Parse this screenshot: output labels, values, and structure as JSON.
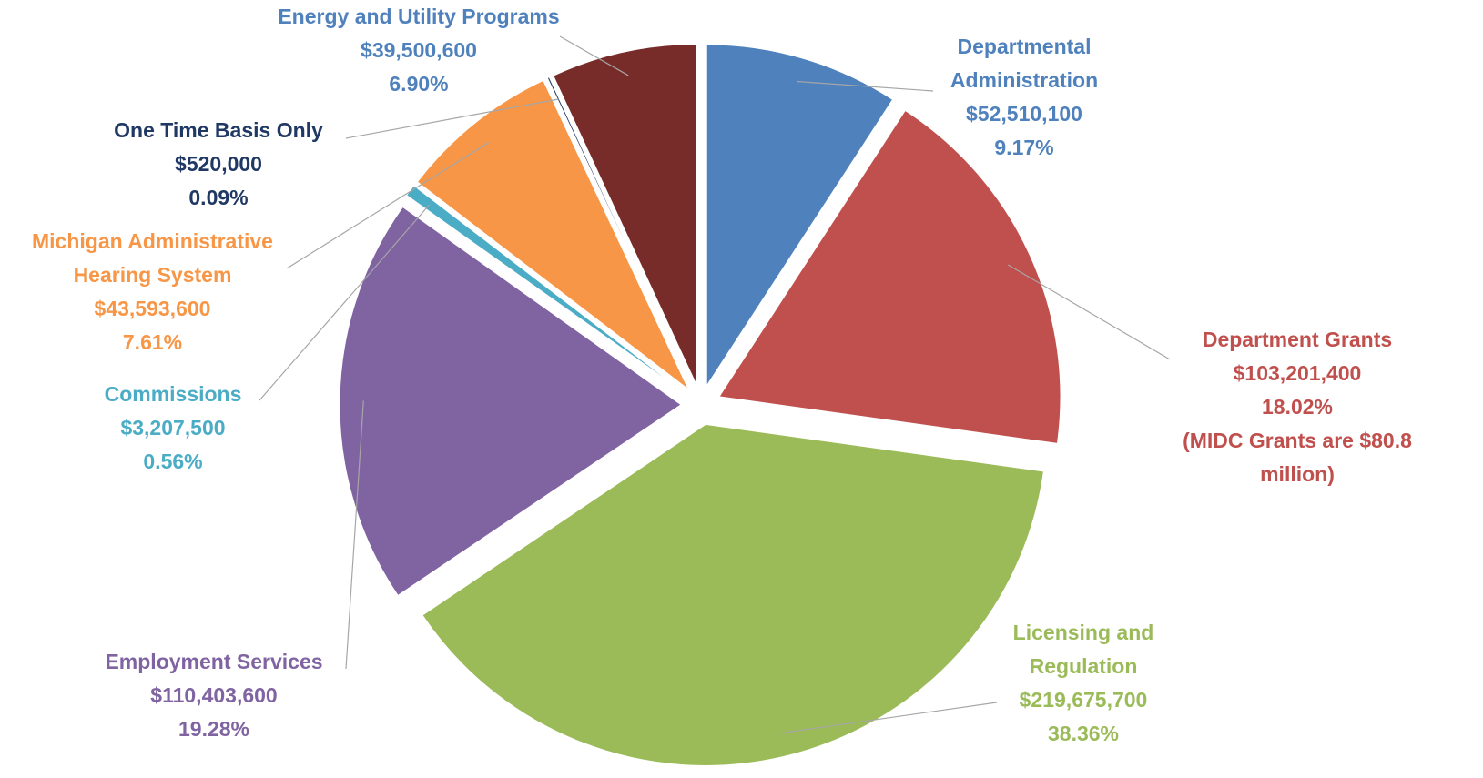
{
  "chart_data": {
    "type": "pie",
    "categories": [
      "Departmental Administration",
      "Department Grants",
      "Licensing and Regulation",
      "Employment Services",
      "Commissions",
      "Michigan Administrative Hearing System",
      "One Time Basis Only",
      "Energy and Utility Programs"
    ],
    "values": [
      52510100,
      103201400,
      219675700,
      110403600,
      3207500,
      43593600,
      520000,
      39500600
    ],
    "value_labels": [
      "$52,510,100",
      "$103,201,400",
      "$219,675,700",
      "$110,403,600",
      "$3,207,500",
      "$43,593,600",
      "$520,000",
      "$39,500,600"
    ],
    "percentages": [
      9.17,
      18.02,
      38.36,
      19.28,
      0.56,
      7.61,
      0.09,
      6.9
    ],
    "percentage_labels": [
      "9.17%",
      "18.02%",
      "38.36%",
      "19.28%",
      "0.56%",
      "7.61%",
      "0.09%",
      "6.90%"
    ],
    "colors": [
      "#4f81bd",
      "#c0504d",
      "#9bbb59",
      "#8064a2",
      "#4bacc6",
      "#f79646",
      "#1f3864",
      "#772c2a"
    ],
    "label_colors": [
      "#4f81bd",
      "#c0504d",
      "#9bbb59",
      "#8064a2",
      "#4bacc6",
      "#f79646",
      "#1f3864",
      "#4f81bd"
    ],
    "annotations": [
      {
        "text": "(MIDC Grants are $80.8 million)",
        "category": 1
      }
    ]
  }
}
